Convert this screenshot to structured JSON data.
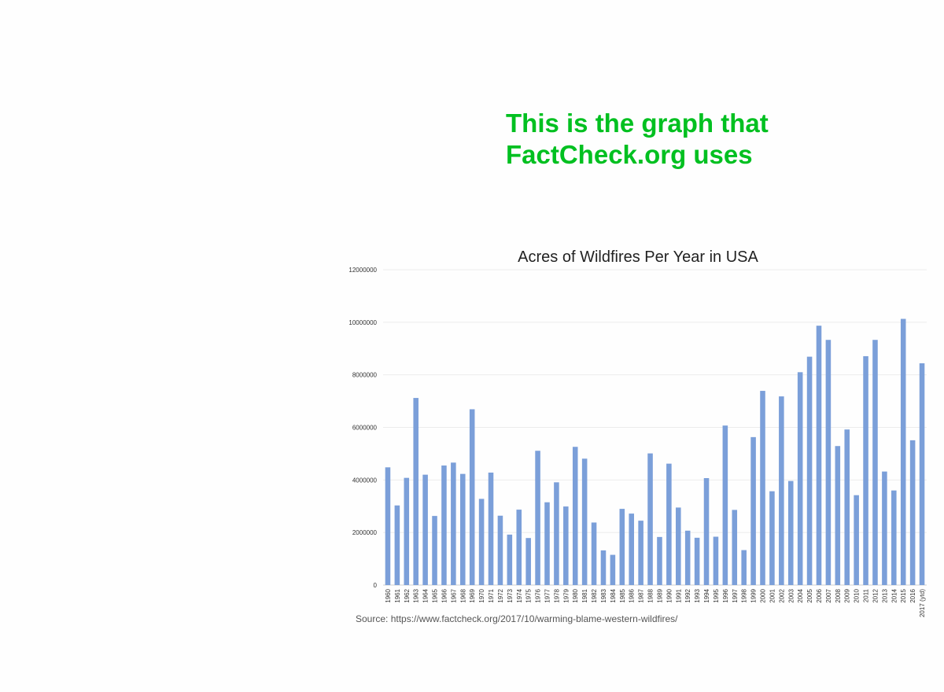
{
  "headline": {
    "line1": "This is the graph that",
    "line2": "FactCheck.org uses",
    "color": "#00c020"
  },
  "source": "Source:  https://www.factcheck.org/2017/10/warming-blame-western-wildfires/",
  "chart_data": {
    "type": "bar",
    "title": "Acres of Wildfires Per Year in USA",
    "xlabel": "",
    "ylabel": "",
    "ylim": [
      0,
      12000000
    ],
    "yticks": [
      "0",
      "2000000",
      "4000000",
      "6000000",
      "8000000",
      "10000000",
      "12000000"
    ],
    "grid": true,
    "bar_color": "#7b9fd9",
    "categories": [
      "1960",
      "1961",
      "1962",
      "1963",
      "1964",
      "1965",
      "1966",
      "1967",
      "1968",
      "1969",
      "1970",
      "1971",
      "1972",
      "1973",
      "1974",
      "1975",
      "1976",
      "1977",
      "1978",
      "1979",
      "1980",
      "1981",
      "1982",
      "1983",
      "1984",
      "1985",
      "1986",
      "1987",
      "1988",
      "1989",
      "1990",
      "1991",
      "1992",
      "1993",
      "1994",
      "1995",
      "1996",
      "1997",
      "1998",
      "1999",
      "2000",
      "2001",
      "2002",
      "2003",
      "2004",
      "2005",
      "2006",
      "2007",
      "2008",
      "2009",
      "2010",
      "2011",
      "2012",
      "2013",
      "2014",
      "2015",
      "2016",
      "2017 (ytd)"
    ],
    "values": [
      4480000,
      3030000,
      4080000,
      7120000,
      4200000,
      2630000,
      4550000,
      4660000,
      4230000,
      6690000,
      3280000,
      4280000,
      2640000,
      1920000,
      2870000,
      1790000,
      5110000,
      3150000,
      3910000,
      2990000,
      5260000,
      4810000,
      2380000,
      1320000,
      1150000,
      2900000,
      2720000,
      2450000,
      5010000,
      1830000,
      4620000,
      2950000,
      2070000,
      1800000,
      4070000,
      1840000,
      6070000,
      2860000,
      1330000,
      5630000,
      7390000,
      3570000,
      7180000,
      3960000,
      8100000,
      8690000,
      9870000,
      9330000,
      5290000,
      5920000,
      3420000,
      8710000,
      9330000,
      4320000,
      3600000,
      10130000,
      5510000,
      8440000
    ]
  }
}
